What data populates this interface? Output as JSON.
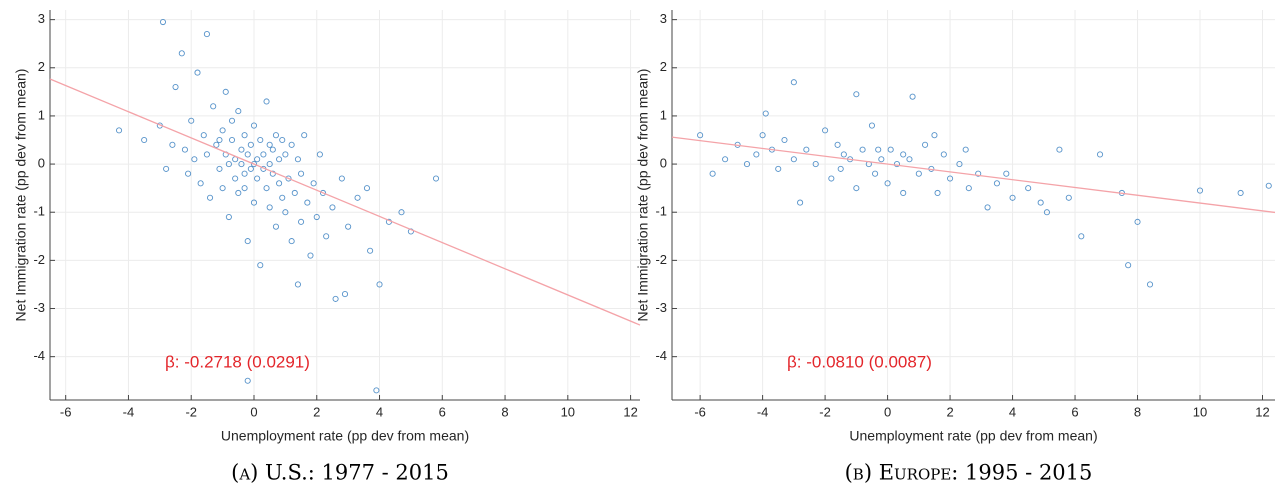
{
  "chart_data": [
    {
      "type": "scatter",
      "caption": "(a) U.S.: 1977 - 2015",
      "x_label": "Unemployment rate (pp dev from mean)",
      "y_label": "Net Immigration rate (pp dev from mean)",
      "annotation": "β: -0.2718 (0.0291)",
      "annotation_color": "#e3262b",
      "color": "#1f6fb8",
      "fit_line": {
        "slope": -0.2718,
        "intercept": 0,
        "color": "#f4a3a8"
      },
      "xlim": [
        -6.5,
        12.3
      ],
      "ylim": [
        -4.9,
        3.2
      ],
      "xticks": [
        -6,
        -4,
        -2,
        0,
        2,
        4,
        6,
        8,
        10,
        12
      ],
      "yticks": [
        -4,
        -3,
        -2,
        -1,
        0,
        1,
        2,
        3
      ],
      "grid": true,
      "x": [
        -3.5,
        -3.0,
        -2.9,
        -2.6,
        -2.5,
        -2.3,
        -2.2,
        -2.1,
        -2.0,
        -1.9,
        -1.8,
        -1.7,
        -1.6,
        -1.5,
        -1.5,
        -1.4,
        -1.3,
        -1.2,
        -1.1,
        -1.0,
        -1.0,
        -0.9,
        -0.9,
        -0.8,
        -0.8,
        -0.7,
        -0.7,
        -0.6,
        -0.6,
        -0.5,
        -0.5,
        -0.4,
        -0.4,
        -0.3,
        -0.3,
        -0.2,
        -0.2,
        -0.1,
        -0.1,
        0.0,
        0.0,
        0.0,
        0.1,
        0.1,
        0.2,
        0.2,
        0.3,
        0.3,
        0.4,
        0.4,
        0.5,
        0.5,
        0.6,
        0.6,
        0.7,
        0.7,
        0.8,
        0.8,
        0.9,
        1.0,
        1.0,
        1.1,
        1.2,
        1.2,
        1.3,
        1.4,
        1.5,
        1.5,
        1.6,
        1.7,
        1.8,
        1.9,
        2.0,
        2.1,
        2.2,
        2.3,
        2.5,
        2.6,
        2.8,
        2.9,
        3.0,
        3.3,
        3.6,
        3.7,
        3.9,
        4.0,
        4.3,
        4.7,
        5.0,
        5.8,
        -0.2,
        1.4,
        -2.8,
        -4.3,
        0.5,
        -0.3,
        0.9,
        -1.1
      ],
      "y": [
        0.5,
        0.8,
        2.95,
        0.4,
        1.6,
        2.3,
        0.3,
        -0.2,
        0.9,
        0.1,
        1.9,
        -0.4,
        0.6,
        2.7,
        0.2,
        -0.7,
        1.2,
        0.4,
        -0.1,
        0.7,
        -0.5,
        1.5,
        0.2,
        0.0,
        -1.1,
        0.5,
        0.9,
        -0.3,
        0.1,
        1.1,
        -0.6,
        0.3,
        0.0,
        -0.2,
        0.6,
        -1.6,
        0.2,
        -0.1,
        0.4,
        0.0,
        -0.8,
        0.8,
        0.1,
        -0.3,
        0.5,
        -2.1,
        -0.1,
        0.2,
        -0.5,
        1.3,
        0.0,
        -0.9,
        0.3,
        -0.2,
        -1.3,
        0.6,
        -0.4,
        0.1,
        -0.7,
        0.2,
        -1.0,
        -0.3,
        0.4,
        -1.6,
        -0.6,
        0.1,
        -1.2,
        -0.2,
        0.6,
        -0.8,
        -1.9,
        -0.4,
        -1.1,
        0.2,
        -0.6,
        -1.5,
        -0.9,
        -2.8,
        -0.3,
        -2.7,
        -1.3,
        -0.7,
        -0.5,
        -1.8,
        -4.7,
        -2.5,
        -1.2,
        -1.0,
        -1.4,
        -0.3,
        -4.5,
        -2.5,
        -0.1,
        0.7,
        0.4,
        -0.5,
        0.5,
        0.5
      ]
    },
    {
      "type": "scatter",
      "caption": "(b) Europe: 1995 - 2015",
      "x_label": "Unemployment rate (pp dev from mean)",
      "y_label": "Net Immigration rate (pp dev from mean)",
      "annotation": "β: -0.0810 (0.0087)",
      "annotation_color": "#e3262b",
      "color": "#1f6fb8",
      "fit_line": {
        "slope": -0.081,
        "intercept": 0,
        "color": "#f4a3a8"
      },
      "xlim": [
        -6.9,
        12.4
      ],
      "ylim": [
        -4.9,
        3.2
      ],
      "xticks": [
        -6,
        -4,
        -2,
        0,
        2,
        4,
        6,
        8,
        10,
        12
      ],
      "yticks": [
        -4,
        -3,
        -2,
        -1,
        0,
        1,
        2,
        3
      ],
      "grid": true,
      "x": [
        -6.0,
        -5.6,
        -5.2,
        -4.8,
        -4.5,
        -4.2,
        -4.0,
        -3.9,
        -3.7,
        -3.5,
        -3.3,
        -3.0,
        -3.0,
        -2.8,
        -2.6,
        -2.3,
        -2.0,
        -1.8,
        -1.6,
        -1.4,
        -1.2,
        -1.0,
        -1.0,
        -0.8,
        -0.6,
        -0.5,
        -0.4,
        -0.2,
        0.0,
        0.1,
        0.3,
        0.5,
        0.7,
        0.8,
        1.0,
        1.2,
        1.4,
        1.6,
        1.8,
        2.0,
        2.3,
        2.6,
        2.9,
        3.2,
        3.5,
        3.8,
        4.0,
        4.5,
        4.9,
        5.1,
        5.5,
        5.8,
        6.2,
        6.8,
        7.5,
        7.7,
        8.0,
        8.4,
        10.0,
        11.3,
        12.2,
        1.5,
        -1.5,
        0.5,
        -0.3,
        2.5
      ],
      "y": [
        0.6,
        -0.2,
        0.1,
        0.4,
        0.0,
        0.2,
        0.6,
        1.05,
        0.3,
        -0.1,
        0.5,
        1.7,
        0.1,
        -0.8,
        0.3,
        0.0,
        0.7,
        -0.3,
        0.4,
        0.2,
        0.1,
        1.45,
        -0.5,
        0.3,
        0.0,
        0.8,
        -0.2,
        0.1,
        -0.4,
        0.3,
        0.0,
        -0.6,
        0.1,
        1.4,
        -0.2,
        0.4,
        -0.1,
        -0.6,
        0.2,
        -0.3,
        0.0,
        -0.5,
        -0.2,
        -0.9,
        -0.4,
        -0.2,
        -0.7,
        -0.5,
        -0.8,
        -1.0,
        0.3,
        -0.7,
        -1.5,
        0.2,
        -0.6,
        -2.1,
        -1.2,
        -2.5,
        -0.55,
        -0.6,
        -0.45,
        0.6,
        -0.1,
        0.2,
        0.3,
        0.3
      ]
    }
  ]
}
